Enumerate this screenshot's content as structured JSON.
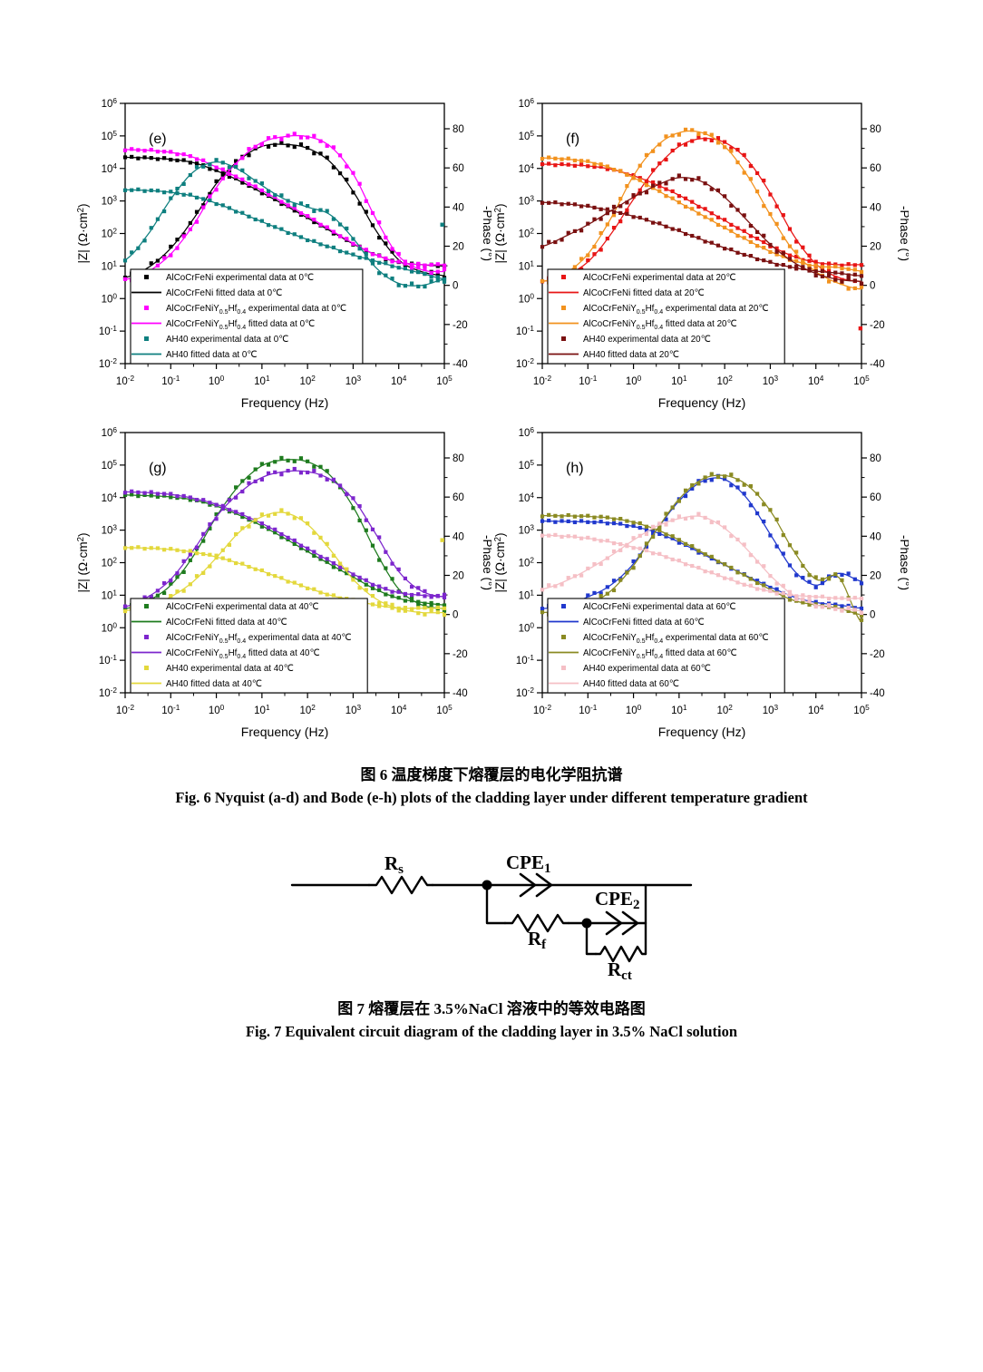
{
  "captions": {
    "fig6_cn": "图 6  温度梯度下熔覆层的电化学阻抗谱",
    "fig6_en": "Fig. 6 Nyquist (a-d) and Bode (e-h) plots of the cladding layer under different temperature gradient",
    "fig7_cn": "图 7  熔覆层在 3.5%NaCl 溶液中的等效电路图",
    "fig7_en": "Fig. 7 Equivalent circuit diagram of the cladding layer in 3.5% NaCl solution"
  },
  "circuit": {
    "rs": {
      "main": "R",
      "sub": "s"
    },
    "cpe1": {
      "main": "CPE",
      "sub": "1"
    },
    "rf": {
      "main": "R",
      "sub": "f"
    },
    "cpe2": {
      "main": "CPE",
      "sub": "2"
    },
    "rct": {
      "main": "R",
      "sub": "ct"
    }
  },
  "chart_data": [
    {
      "type": "line",
      "panel": "(e)",
      "temperature": "0℃",
      "xlabel": "Frequency (Hz)",
      "ylabel_left": "|Z| (Ω·cm^{2})",
      "ylabel_right": "-Phase (°)",
      "x_exponents": [
        -2,
        -1,
        0,
        1,
        2,
        3,
        4,
        5
      ],
      "y_left_exponents": [
        -2,
        -1,
        0,
        1,
        2,
        3,
        4,
        5,
        6
      ],
      "y_right_ticks": [
        -40,
        -20,
        0,
        20,
        40,
        60,
        80
      ],
      "x_hz": [
        0.01,
        0.0316,
        0.1,
        0.316,
        1,
        3.16,
        10,
        31.6,
        100,
        316,
        1000,
        3162,
        10000,
        31623,
        100000
      ],
      "series": [
        {
          "material": "AlCoCrFeNi",
          "color": "#000000",
          "legend_exp": "AlCoCrFeNi experimental data at 0℃",
          "legend_fit": "AlCoCrFeNi fitted data at 0℃",
          "zmag": [
            22000,
            21000,
            19000,
            15000,
            8500,
            4200,
            1800,
            750,
            300,
            120,
            48,
            22,
            13,
            11,
            10
          ],
          "phase": [
            4,
            9,
            19,
            34,
            52,
            64,
            71,
            72,
            70,
            63,
            48,
            28,
            13,
            7,
            5
          ]
        },
        {
          "material": "AlCoCrFeNiY_{0.5}Hf_{0.4}",
          "color": "#ff00ff",
          "legend_exp": "AlCoCrFeNiY_{0.5}Hf_{0.4} experimental data at 0℃",
          "legend_fit": "AlCoCrFeNiY_{0.5}Hf_{0.4} fitted data at 0℃",
          "zmag": [
            38000,
            36000,
            31000,
            22000,
            11000,
            5000,
            2100,
            850,
            340,
            130,
            50,
            22,
            13,
            11,
            11
          ],
          "phase": [
            3,
            7,
            16,
            31,
            50,
            64,
            73,
            76,
            76,
            71,
            57,
            34,
            15,
            8,
            7
          ]
        },
        {
          "material": "AH40",
          "color": "#0e7f7f",
          "legend_exp": "AH40 experimental data at 0℃",
          "legend_fit": "AH40 fitted data at 0℃",
          "zmag": [
            2200,
            2100,
            1850,
            1400,
            850,
            450,
            230,
            120,
            65,
            38,
            22,
            14,
            9,
            6,
            4
          ],
          "phase": [
            13,
            26,
            44,
            58,
            63,
            59,
            51,
            44,
            40,
            36,
            24,
            9,
            1,
            0,
            3
          ]
        }
      ],
      "outliers": [
        {
          "color": "#0e7f7f",
          "x": 90000,
          "phase": 31
        }
      ]
    },
    {
      "type": "line",
      "panel": "(f)",
      "temperature": "20℃",
      "xlabel": "Frequency (Hz)",
      "ylabel_left": "|Z| (Ω·cm^{2})",
      "ylabel_right": "-Phase (°)",
      "x_exponents": [
        -2,
        -1,
        0,
        1,
        2,
        3,
        4,
        5
      ],
      "y_left_exponents": [
        -2,
        -1,
        0,
        1,
        2,
        3,
        4,
        5,
        6
      ],
      "y_right_ticks": [
        -40,
        -20,
        0,
        20,
        40,
        60,
        80
      ],
      "x_hz": [
        0.01,
        0.0316,
        0.1,
        0.316,
        1,
        3.16,
        10,
        31.6,
        100,
        316,
        1000,
        3162,
        10000,
        31623,
        100000
      ],
      "series": [
        {
          "material": "AlCoCrFeNi",
          "color": "#e81515",
          "legend_exp": "AlCoCrFeNi experimental data at 20℃",
          "legend_fit": "AlCoCrFeNi fitted data at 20℃",
          "zmag": [
            13500,
            13000,
            12000,
            9500,
            6000,
            3200,
            1500,
            620,
            250,
            100,
            42,
            20,
            13,
            11,
            11
          ],
          "phase": [
            2,
            5,
            12,
            26,
            44,
            60,
            71,
            75,
            73,
            64,
            47,
            26,
            11,
            4,
            2
          ]
        },
        {
          "material": "AlCoCrFeNiY_{0.5}Hf_{0.4}",
          "color": "#f2921e",
          "legend_exp": "AlCoCrFeNiY_{0.5}Hf_{0.4} experimental data at 20℃",
          "legend_fit": "AlCoCrFeNiY_{0.5}Hf_{0.4} fitted data at 20℃",
          "zmag": [
            21000,
            19500,
            16000,
            10500,
            5200,
            2200,
            900,
            370,
            150,
            62,
            28,
            15,
            10,
            9,
            7
          ],
          "phase": [
            2,
            6,
            16,
            34,
            56,
            71,
            78,
            78,
            71,
            56,
            36,
            18,
            7,
            1,
            -2
          ]
        },
        {
          "material": "AH40",
          "color": "#7a1010",
          "legend_exp": "AH40 experimental data at 20℃",
          "legend_fit": "AH40 fitted data at 20℃",
          "zmag": [
            900,
            820,
            680,
            500,
            340,
            210,
            120,
            65,
            36,
            21,
            13,
            9,
            7,
            6,
            5
          ],
          "phase": [
            20,
            25,
            31,
            38,
            45,
            51,
            55,
            53,
            45,
            33,
            21,
            12,
            6,
            3,
            2
          ]
        }
      ],
      "outliers": [
        {
          "color": "#e81515",
          "x": 95000,
          "phase": -22
        }
      ]
    },
    {
      "type": "line",
      "panel": "(g)",
      "temperature": "40℃",
      "xlabel": "Frequency (Hz)",
      "ylabel_left": "|Z| (Ω·cm^{2})",
      "ylabel_right": "-Phase (°)",
      "x_exponents": [
        -2,
        -1,
        0,
        1,
        2,
        3,
        4,
        5
      ],
      "y_left_exponents": [
        -2,
        -1,
        0,
        1,
        2,
        3,
        4,
        5,
        6
      ],
      "y_right_ticks": [
        -40,
        -20,
        0,
        20,
        40,
        60,
        80
      ],
      "x_hz": [
        0.01,
        0.0316,
        0.1,
        0.316,
        1,
        3.16,
        10,
        31.6,
        100,
        316,
        1000,
        3162,
        10000,
        31623,
        100000
      ],
      "series": [
        {
          "material": "AlCoCrFeNi",
          "color": "#1e7b1e",
          "legend_exp": "AlCoCrFeNi experimental data at 40℃",
          "legend_fit": "AlCoCrFeNi fitted data at 40℃",
          "zmag": [
            12000,
            11500,
            10500,
            8500,
            5500,
            2900,
            1350,
            560,
            220,
            88,
            36,
            15,
            8,
            6,
            5
          ],
          "phase": [
            3,
            7,
            15,
            30,
            50,
            66,
            76,
            79,
            78,
            71,
            55,
            32,
            13,
            5,
            3
          ]
        },
        {
          "material": "AlCoCrFeNiY_{0.5}Hf_{0.4}",
          "color": "#7d26cd",
          "legend_exp": "AlCoCrFeNiY_{0.5}Hf_{0.4} experimental data at 40℃",
          "legend_fit": "AlCoCrFeNiY_{0.5}Hf_{0.4} fitted data at 40℃",
          "zmag": [
            15000,
            14200,
            12500,
            9500,
            6200,
            3300,
            1600,
            680,
            270,
            110,
            45,
            20,
            12,
            10,
            9
          ],
          "phase": [
            4,
            9,
            18,
            33,
            50,
            62,
            70,
            73,
            73,
            69,
            59,
            41,
            22,
            12,
            9
          ]
        },
        {
          "material": "AH40",
          "color": "#e3d83c",
          "legend_exp": "AH40 experimental data at 40℃",
          "legend_fit": "AH40 fitted data at 40℃",
          "zmag": [
            290,
            280,
            255,
            210,
            150,
            95,
            55,
            30,
            17,
            10,
            7,
            5,
            4,
            4,
            4
          ],
          "phase": [
            2,
            4,
            9,
            17,
            29,
            42,
            50,
            52,
            46,
            33,
            18,
            8,
            3,
            1,
            1
          ]
        }
      ],
      "outliers": [
        {
          "color": "#e3d83c",
          "x": 90000,
          "phase": 38
        }
      ]
    },
    {
      "type": "line",
      "panel": "(h)",
      "temperature": "60℃",
      "xlabel": "Frequency (Hz)",
      "ylabel_left": "|Z| (Ω·cm^{2})",
      "ylabel_right": "-Phase (°)",
      "x_exponents": [
        -2,
        -1,
        0,
        1,
        2,
        3,
        4,
        5
      ],
      "y_left_exponents": [
        -2,
        -1,
        0,
        1,
        2,
        3,
        4,
        5,
        6
      ],
      "y_right_ticks": [
        -40,
        -20,
        0,
        20,
        40,
        60,
        80
      ],
      "x_hz": [
        0.01,
        0.0316,
        0.1,
        0.316,
        1,
        3.16,
        10,
        31.6,
        100,
        316,
        1000,
        3162,
        10000,
        31623,
        100000
      ],
      "series": [
        {
          "material": "AlCoCrFeNi",
          "color": "#2038cd",
          "legend_exp": "AlCoCrFeNi experimental data at 60℃",
          "legend_fit": "AlCoCrFeNi fitted data at 60℃",
          "zmag": [
            1900,
            1850,
            1800,
            1650,
            1300,
            850,
            430,
            190,
            85,
            38,
            18,
            9,
            6,
            5,
            4
          ],
          "phase": [
            3,
            5,
            9,
            15,
            26,
            43,
            58,
            68,
            69,
            59,
            41,
            23,
            15,
            21,
            17
          ]
        },
        {
          "material": "AlCoCrFeNiY_{0.5}Hf_{0.4}",
          "color": "#8a8a22",
          "legend_exp": "AlCoCrFeNiY_{0.5}Hf_{0.4} experimental data at 60℃",
          "legend_fit": "AlCoCrFeNiY_{0.5}Hf_{0.4} fitted data at 60℃",
          "zmag": [
            2800,
            2750,
            2650,
            2350,
            1750,
            1050,
            500,
            210,
            88,
            36,
            15,
            7,
            5,
            4,
            2.5
          ],
          "phase": [
            1,
            2,
            5,
            12,
            25,
            43,
            59,
            69,
            71,
            66,
            53,
            33,
            18,
            19,
            -4
          ]
        },
        {
          "material": "AH40",
          "color": "#f5bfc5",
          "legend_exp": "AH40 experimental data at 60℃",
          "legend_fit": "AH40 fitted data at 60℃",
          "zmag": [
            700,
            650,
            560,
            430,
            300,
            190,
            110,
            62,
            35,
            20,
            13,
            10,
            9,
            8,
            8
          ],
          "phase": [
            13,
            17,
            23,
            30,
            38,
            45,
            49,
            50,
            44,
            33,
            20,
            10,
            5,
            3,
            2
          ]
        }
      ],
      "outliers": []
    }
  ]
}
